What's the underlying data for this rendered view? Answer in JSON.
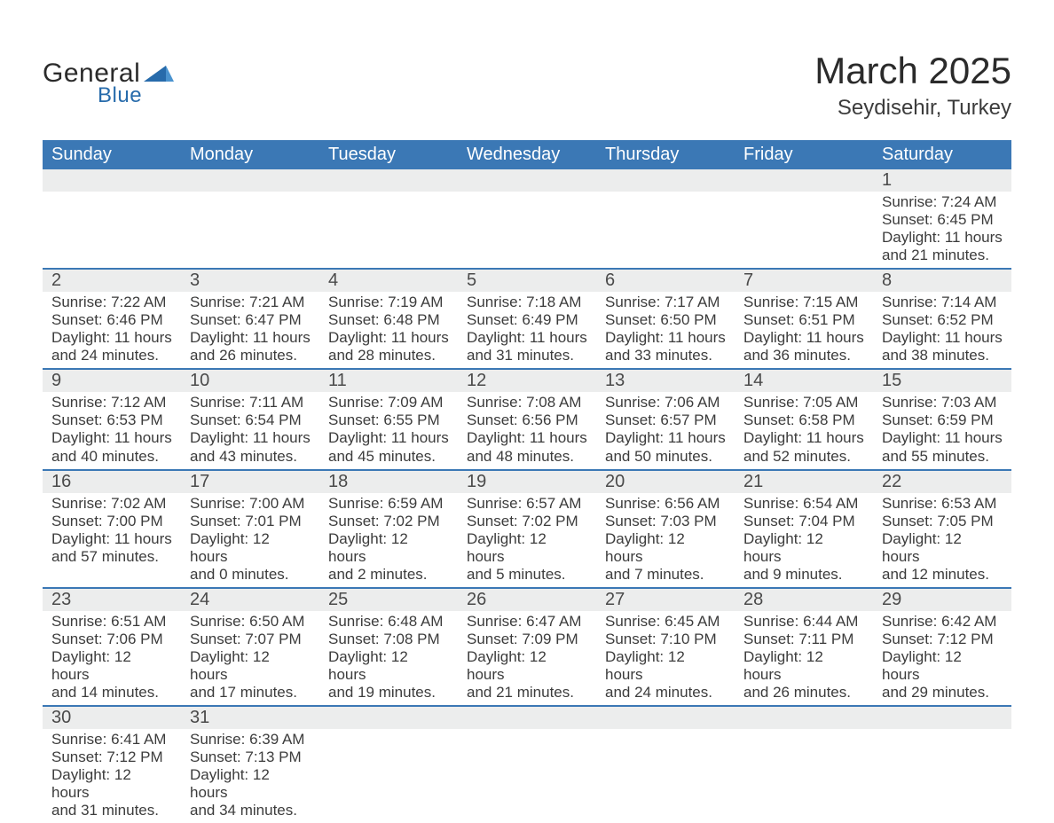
{
  "brand": {
    "word1": "General",
    "word2": "Blue"
  },
  "title": "March 2025",
  "location": "Seydisehir, Turkey",
  "theme": {
    "header_blue": "#3b78b5",
    "row_gray": "#eceded",
    "divider_blue": "#3b78b5",
    "text": "#3c3c3c",
    "logo_dark": "#2b2b2b",
    "logo_blue": "#276bab",
    "background": "#ffffff"
  },
  "typography": {
    "month_title_fontsize": 42,
    "location_fontsize": 24,
    "weekday_header_fontsize": 20,
    "daynum_fontsize": 20,
    "body_fontsize": 17
  },
  "weekdays": [
    "Sunday",
    "Monday",
    "Tuesday",
    "Wednesday",
    "Thursday",
    "Friday",
    "Saturday"
  ],
  "weeks": [
    [
      null,
      null,
      null,
      null,
      null,
      null,
      {
        "n": "1",
        "sunrise": "Sunrise: 7:24 AM",
        "sunset": "Sunset: 6:45 PM",
        "dl1": "Daylight: 11 hours",
        "dl2": "and 21 minutes."
      }
    ],
    [
      {
        "n": "2",
        "sunrise": "Sunrise: 7:22 AM",
        "sunset": "Sunset: 6:46 PM",
        "dl1": "Daylight: 11 hours",
        "dl2": "and 24 minutes."
      },
      {
        "n": "3",
        "sunrise": "Sunrise: 7:21 AM",
        "sunset": "Sunset: 6:47 PM",
        "dl1": "Daylight: 11 hours",
        "dl2": "and 26 minutes."
      },
      {
        "n": "4",
        "sunrise": "Sunrise: 7:19 AM",
        "sunset": "Sunset: 6:48 PM",
        "dl1": "Daylight: 11 hours",
        "dl2": "and 28 minutes."
      },
      {
        "n": "5",
        "sunrise": "Sunrise: 7:18 AM",
        "sunset": "Sunset: 6:49 PM",
        "dl1": "Daylight: 11 hours",
        "dl2": "and 31 minutes."
      },
      {
        "n": "6",
        "sunrise": "Sunrise: 7:17 AM",
        "sunset": "Sunset: 6:50 PM",
        "dl1": "Daylight: 11 hours",
        "dl2": "and 33 minutes."
      },
      {
        "n": "7",
        "sunrise": "Sunrise: 7:15 AM",
        "sunset": "Sunset: 6:51 PM",
        "dl1": "Daylight: 11 hours",
        "dl2": "and 36 minutes."
      },
      {
        "n": "8",
        "sunrise": "Sunrise: 7:14 AM",
        "sunset": "Sunset: 6:52 PM",
        "dl1": "Daylight: 11 hours",
        "dl2": "and 38 minutes."
      }
    ],
    [
      {
        "n": "9",
        "sunrise": "Sunrise: 7:12 AM",
        "sunset": "Sunset: 6:53 PM",
        "dl1": "Daylight: 11 hours",
        "dl2": "and 40 minutes."
      },
      {
        "n": "10",
        "sunrise": "Sunrise: 7:11 AM",
        "sunset": "Sunset: 6:54 PM",
        "dl1": "Daylight: 11 hours",
        "dl2": "and 43 minutes."
      },
      {
        "n": "11",
        "sunrise": "Sunrise: 7:09 AM",
        "sunset": "Sunset: 6:55 PM",
        "dl1": "Daylight: 11 hours",
        "dl2": "and 45 minutes."
      },
      {
        "n": "12",
        "sunrise": "Sunrise: 7:08 AM",
        "sunset": "Sunset: 6:56 PM",
        "dl1": "Daylight: 11 hours",
        "dl2": "and 48 minutes."
      },
      {
        "n": "13",
        "sunrise": "Sunrise: 7:06 AM",
        "sunset": "Sunset: 6:57 PM",
        "dl1": "Daylight: 11 hours",
        "dl2": "and 50 minutes."
      },
      {
        "n": "14",
        "sunrise": "Sunrise: 7:05 AM",
        "sunset": "Sunset: 6:58 PM",
        "dl1": "Daylight: 11 hours",
        "dl2": "and 52 minutes."
      },
      {
        "n": "15",
        "sunrise": "Sunrise: 7:03 AM",
        "sunset": "Sunset: 6:59 PM",
        "dl1": "Daylight: 11 hours",
        "dl2": "and 55 minutes."
      }
    ],
    [
      {
        "n": "16",
        "sunrise": "Sunrise: 7:02 AM",
        "sunset": "Sunset: 7:00 PM",
        "dl1": "Daylight: 11 hours",
        "dl2": "and 57 minutes."
      },
      {
        "n": "17",
        "sunrise": "Sunrise: 7:00 AM",
        "sunset": "Sunset: 7:01 PM",
        "dl1": "Daylight: 12 hours",
        "dl2": "and 0 minutes."
      },
      {
        "n": "18",
        "sunrise": "Sunrise: 6:59 AM",
        "sunset": "Sunset: 7:02 PM",
        "dl1": "Daylight: 12 hours",
        "dl2": "and 2 minutes."
      },
      {
        "n": "19",
        "sunrise": "Sunrise: 6:57 AM",
        "sunset": "Sunset: 7:02 PM",
        "dl1": "Daylight: 12 hours",
        "dl2": "and 5 minutes."
      },
      {
        "n": "20",
        "sunrise": "Sunrise: 6:56 AM",
        "sunset": "Sunset: 7:03 PM",
        "dl1": "Daylight: 12 hours",
        "dl2": "and 7 minutes."
      },
      {
        "n": "21",
        "sunrise": "Sunrise: 6:54 AM",
        "sunset": "Sunset: 7:04 PM",
        "dl1": "Daylight: 12 hours",
        "dl2": "and 9 minutes."
      },
      {
        "n": "22",
        "sunrise": "Sunrise: 6:53 AM",
        "sunset": "Sunset: 7:05 PM",
        "dl1": "Daylight: 12 hours",
        "dl2": "and 12 minutes."
      }
    ],
    [
      {
        "n": "23",
        "sunrise": "Sunrise: 6:51 AM",
        "sunset": "Sunset: 7:06 PM",
        "dl1": "Daylight: 12 hours",
        "dl2": "and 14 minutes."
      },
      {
        "n": "24",
        "sunrise": "Sunrise: 6:50 AM",
        "sunset": "Sunset: 7:07 PM",
        "dl1": "Daylight: 12 hours",
        "dl2": "and 17 minutes."
      },
      {
        "n": "25",
        "sunrise": "Sunrise: 6:48 AM",
        "sunset": "Sunset: 7:08 PM",
        "dl1": "Daylight: 12 hours",
        "dl2": "and 19 minutes."
      },
      {
        "n": "26",
        "sunrise": "Sunrise: 6:47 AM",
        "sunset": "Sunset: 7:09 PM",
        "dl1": "Daylight: 12 hours",
        "dl2": "and 21 minutes."
      },
      {
        "n": "27",
        "sunrise": "Sunrise: 6:45 AM",
        "sunset": "Sunset: 7:10 PM",
        "dl1": "Daylight: 12 hours",
        "dl2": "and 24 minutes."
      },
      {
        "n": "28",
        "sunrise": "Sunrise: 6:44 AM",
        "sunset": "Sunset: 7:11 PM",
        "dl1": "Daylight: 12 hours",
        "dl2": "and 26 minutes."
      },
      {
        "n": "29",
        "sunrise": "Sunrise: 6:42 AM",
        "sunset": "Sunset: 7:12 PM",
        "dl1": "Daylight: 12 hours",
        "dl2": "and 29 minutes."
      }
    ],
    [
      {
        "n": "30",
        "sunrise": "Sunrise: 6:41 AM",
        "sunset": "Sunset: 7:12 PM",
        "dl1": "Daylight: 12 hours",
        "dl2": "and 31 minutes."
      },
      {
        "n": "31",
        "sunrise": "Sunrise: 6:39 AM",
        "sunset": "Sunset: 7:13 PM",
        "dl1": "Daylight: 12 hours",
        "dl2": "and 34 minutes."
      },
      null,
      null,
      null,
      null,
      null
    ]
  ]
}
